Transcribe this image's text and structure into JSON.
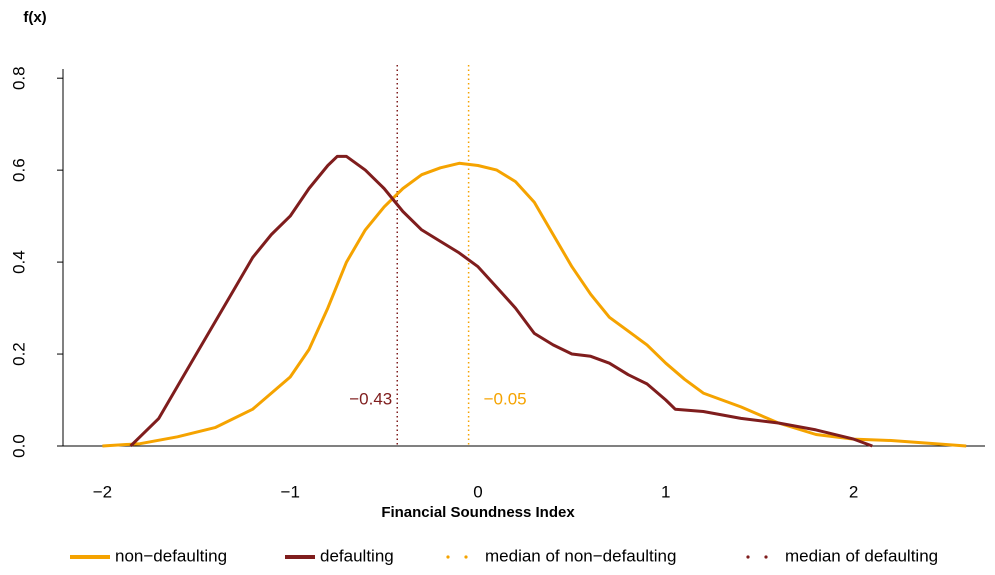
{
  "chart_data": {
    "type": "line",
    "y_axis_label": "f(x)",
    "x_axis_label": "Financial Soundness Index",
    "xlim": [
      -2.21,
      2.7
    ],
    "ylim": [
      0,
      0.82
    ],
    "xticks": [
      {
        "value": -2,
        "label": "−2"
      },
      {
        "value": -1,
        "label": "−1"
      },
      0,
      1,
      2
    ],
    "yticks": [
      {
        "value": 0,
        "label": "0.0"
      },
      0.2,
      0.4,
      0.6,
      0.8
    ],
    "series": [
      {
        "name": "non−defaulting",
        "color": "#f5a300",
        "x": [
          -2.0,
          -1.8,
          -1.6,
          -1.4,
          -1.2,
          -1.0,
          -0.9,
          -0.8,
          -0.7,
          -0.6,
          -0.5,
          -0.4,
          -0.3,
          -0.2,
          -0.1,
          0.0,
          0.1,
          0.2,
          0.3,
          0.4,
          0.5,
          0.6,
          0.7,
          0.8,
          0.9,
          1.0,
          1.1,
          1.2,
          1.3,
          1.4,
          1.6,
          1.8,
          2.0,
          2.2,
          2.4,
          2.6
        ],
        "values": [
          0.0,
          0.005,
          0.02,
          0.04,
          0.08,
          0.15,
          0.21,
          0.3,
          0.4,
          0.47,
          0.52,
          0.56,
          0.59,
          0.605,
          0.615,
          0.61,
          0.6,
          0.575,
          0.53,
          0.46,
          0.39,
          0.33,
          0.28,
          0.25,
          0.22,
          0.18,
          0.145,
          0.115,
          0.1,
          0.085,
          0.05,
          0.025,
          0.015,
          0.012,
          0.006,
          0.0
        ]
      },
      {
        "name": "defaulting",
        "color": "#7f1d1d",
        "x": [
          -1.85,
          -1.8,
          -1.7,
          -1.6,
          -1.5,
          -1.4,
          -1.3,
          -1.2,
          -1.1,
          -1.0,
          -0.9,
          -0.8,
          -0.75,
          -0.7,
          -0.6,
          -0.5,
          -0.4,
          -0.3,
          -0.2,
          -0.1,
          0.0,
          0.1,
          0.2,
          0.3,
          0.4,
          0.5,
          0.6,
          0.7,
          0.8,
          0.9,
          1.0,
          1.05,
          1.2,
          1.4,
          1.6,
          1.8,
          2.0,
          2.1
        ],
        "values": [
          0.0,
          0.02,
          0.06,
          0.13,
          0.2,
          0.27,
          0.34,
          0.41,
          0.46,
          0.5,
          0.56,
          0.61,
          0.63,
          0.63,
          0.6,
          0.56,
          0.51,
          0.47,
          0.445,
          0.42,
          0.39,
          0.345,
          0.3,
          0.245,
          0.22,
          0.2,
          0.195,
          0.18,
          0.155,
          0.135,
          0.1,
          0.08,
          0.075,
          0.06,
          0.05,
          0.035,
          0.015,
          0.0
        ]
      }
    ],
    "medians": [
      {
        "name": "median of non−defaulting",
        "color": "#f5a300",
        "value": -0.05,
        "label": "−0.05"
      },
      {
        "name": "median of defaulting",
        "color": "#7f1d1d",
        "value": -0.43,
        "label": "−0.43"
      }
    ]
  }
}
